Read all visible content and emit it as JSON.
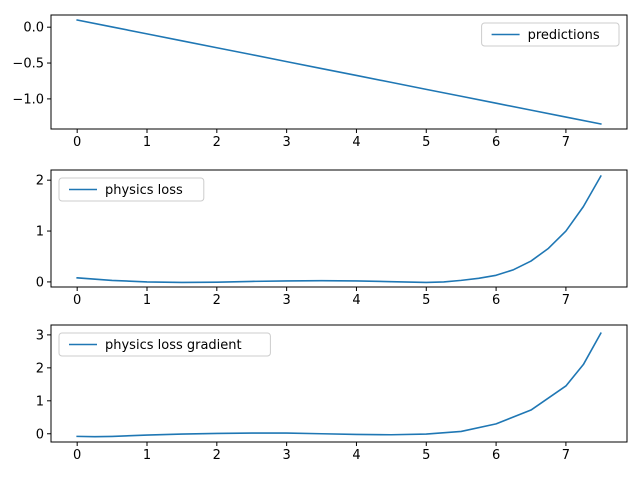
{
  "chart_data": [
    {
      "type": "line",
      "xlim": [
        -0.375,
        7.875
      ],
      "ylim": [
        -1.42,
        0.17
      ],
      "xticks": [
        0,
        1,
        2,
        3,
        4,
        5,
        6,
        7
      ],
      "yticks": [
        0.0,
        -0.5,
        -1.0
      ],
      "ytick_labels": [
        "0.0",
        "−0.5",
        "−1.0"
      ],
      "legend_loc": "upper right",
      "series": [
        {
          "name": "predictions",
          "color": "#1f77b4",
          "x": [
            0,
            0.5,
            1,
            1.5,
            2,
            2.5,
            3,
            3.5,
            4,
            4.5,
            5,
            5.5,
            6,
            6.5,
            7,
            7.5
          ],
          "y": [
            0.1,
            0.003,
            -0.093,
            -0.19,
            -0.287,
            -0.383,
            -0.48,
            -0.577,
            -0.673,
            -0.77,
            -0.867,
            -0.963,
            -1.06,
            -1.157,
            -1.253,
            -1.35
          ]
        }
      ]
    },
    {
      "type": "line",
      "xlim": [
        -0.375,
        7.875
      ],
      "ylim": [
        -0.1,
        2.2
      ],
      "xticks": [
        0,
        1,
        2,
        3,
        4,
        5,
        6,
        7
      ],
      "yticks": [
        0,
        1,
        2
      ],
      "ytick_labels": [
        "0",
        "1",
        "2"
      ],
      "legend_loc": "upper left",
      "series": [
        {
          "name": "physics loss",
          "color": "#1f77b4",
          "x": [
            0,
            0.5,
            1,
            1.5,
            2,
            2.5,
            3,
            3.5,
            4,
            4.5,
            5,
            5.25,
            5.5,
            5.75,
            6,
            6.25,
            6.5,
            6.75,
            7,
            7.25,
            7.5
          ],
          "y": [
            0.08,
            0.03,
            0.0,
            -0.01,
            -0.005,
            0.01,
            0.02,
            0.025,
            0.02,
            0.005,
            -0.01,
            0.0,
            0.03,
            0.07,
            0.13,
            0.24,
            0.41,
            0.66,
            1.0,
            1.48,
            2.08
          ]
        }
      ]
    },
    {
      "type": "line",
      "xlim": [
        -0.375,
        7.875
      ],
      "ylim": [
        -0.25,
        3.3
      ],
      "xticks": [
        0,
        1,
        2,
        3,
        4,
        5,
        6,
        7
      ],
      "yticks": [
        0,
        1,
        2,
        3
      ],
      "ytick_labels": [
        "0",
        "1",
        "2",
        "3"
      ],
      "legend_loc": "upper left",
      "series": [
        {
          "name": "physics loss gradient",
          "color": "#1f77b4",
          "x": [
            0,
            0.25,
            0.5,
            1,
            1.5,
            2,
            2.5,
            3,
            3.5,
            4,
            4.5,
            5,
            5.5,
            6,
            6.5,
            7,
            7.25,
            7.5
          ],
          "y": [
            -0.08,
            -0.09,
            -0.08,
            -0.04,
            -0.01,
            0.01,
            0.02,
            0.02,
            0.0,
            -0.02,
            -0.03,
            -0.01,
            0.07,
            0.3,
            0.72,
            1.45,
            2.1,
            3.05
          ]
        }
      ]
    }
  ]
}
